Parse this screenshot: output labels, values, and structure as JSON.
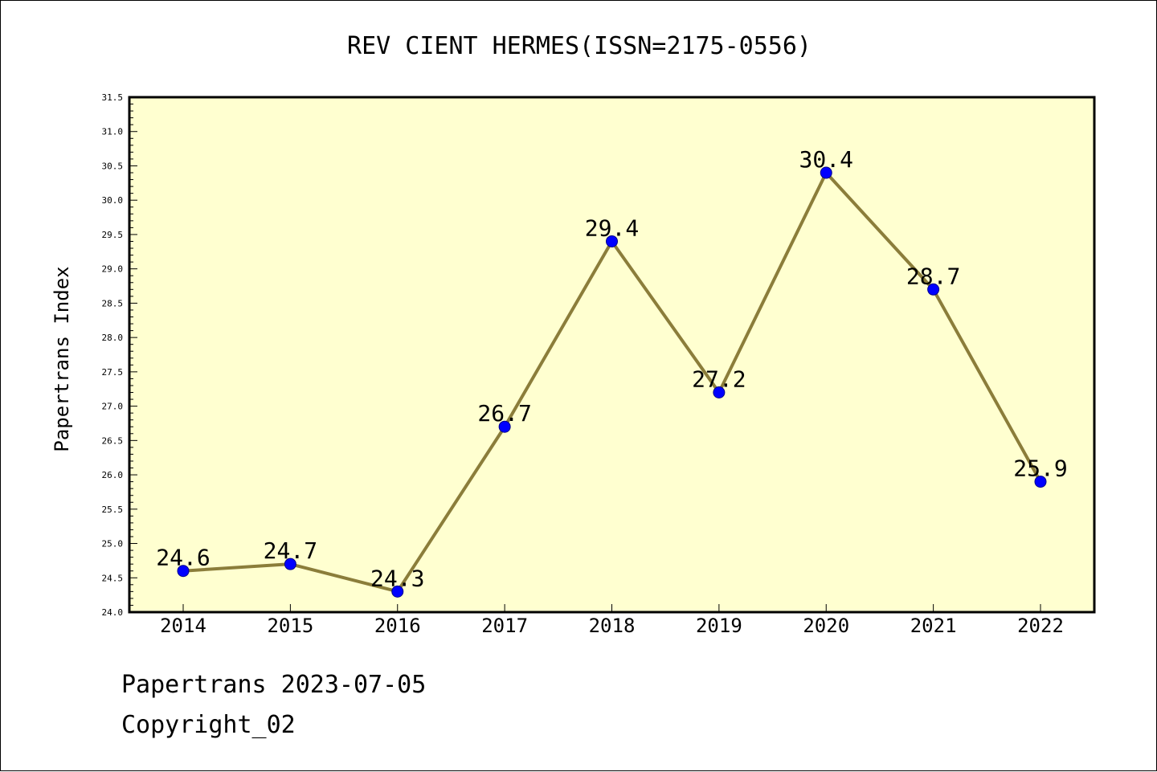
{
  "chart_data": {
    "type": "line",
    "title": "REV CIENT HERMES(ISSN=2175-0556)",
    "xlabel": "",
    "ylabel": "Papertrans Index",
    "categories": [
      "2014",
      "2015",
      "2016",
      "2017",
      "2018",
      "2019",
      "2020",
      "2021",
      "2022"
    ],
    "series": [
      {
        "values": [
          24.6,
          24.7,
          24.3,
          26.7,
          29.4,
          27.2,
          30.4,
          28.7,
          25.9
        ],
        "data_labels": [
          "24.6",
          "24.7",
          "24.3",
          "26.7",
          "29.4",
          "27.2",
          "30.4",
          "28.7",
          "25.9"
        ]
      }
    ],
    "ylim": [
      24.0,
      31.5
    ],
    "yticks": [
      "24.0",
      "24.5",
      "25.0",
      "25.5",
      "26.0",
      "26.5",
      "27.0",
      "27.5",
      "28.0",
      "28.5",
      "29.0",
      "29.5",
      "30.0",
      "30.5",
      "31.0",
      "31.5"
    ],
    "grid": false,
    "legend": "none",
    "colors": {
      "plot_background": "#ffffd0",
      "line": "#8b7d3a",
      "marker": "#0000ff",
      "axes": "#000000"
    }
  },
  "footer": {
    "line1": "Papertrans 2023-07-05",
    "line2": "Copyright_02"
  }
}
